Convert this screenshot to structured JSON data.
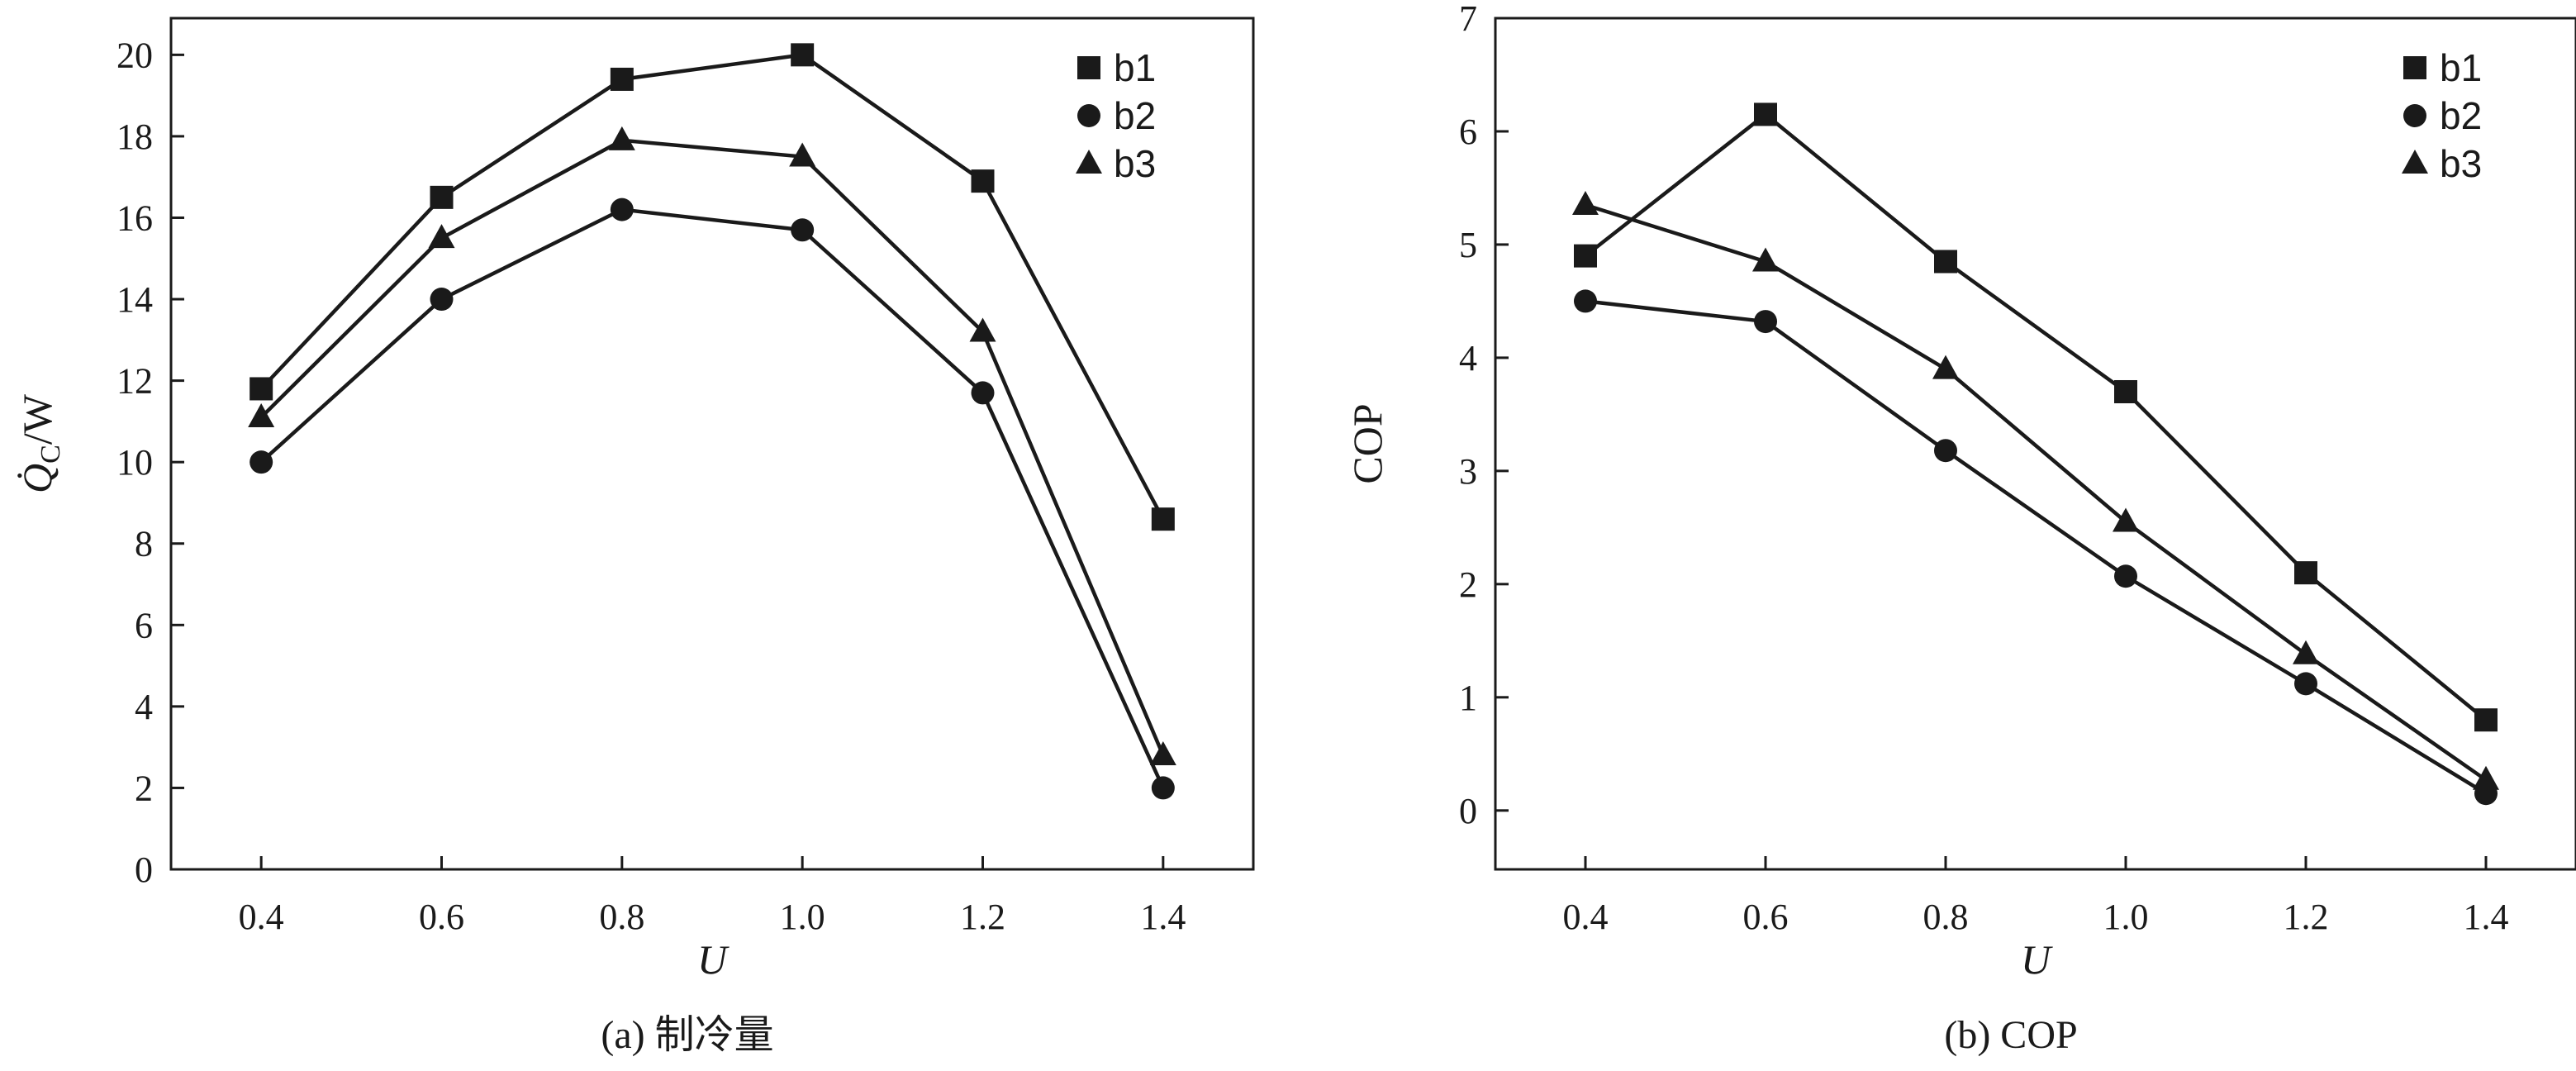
{
  "chart_data": [
    {
      "type": "line",
      "title": "",
      "caption": "(a) 制冷量",
      "xlabel": "U",
      "ylabel": "Q̇C/W",
      "ylabel_parts": {
        "symbol": "Q̇",
        "subscript": "C",
        "unit": "/W"
      },
      "xlim": [
        0.3,
        1.5
      ],
      "ylim": [
        0,
        20.9
      ],
      "x_ticks": [
        0.4,
        0.6,
        0.8,
        1.0,
        1.2,
        1.4
      ],
      "x_tick_labels": [
        "0.4",
        "0.6",
        "0.8",
        "1.0",
        "1.2",
        "1.4"
      ],
      "y_ticks": [
        0,
        2,
        4,
        6,
        8,
        10,
        12,
        14,
        16,
        18,
        20
      ],
      "y_tick_labels": [
        "0",
        "2",
        "4",
        "6",
        "8",
        "10",
        "12",
        "14",
        "16",
        "18",
        "20"
      ],
      "legend_position": "top-right",
      "grid": false,
      "series": [
        {
          "name": "b1",
          "marker": "square",
          "x": [
            0.4,
            0.6,
            0.8,
            1.0,
            1.2,
            1.4
          ],
          "values": [
            11.8,
            16.5,
            19.4,
            20.0,
            16.9,
            8.6
          ]
        },
        {
          "name": "b2",
          "marker": "circle",
          "x": [
            0.4,
            0.6,
            0.8,
            1.0,
            1.2,
            1.4
          ],
          "values": [
            10.0,
            14.0,
            16.2,
            15.7,
            11.7,
            2.0
          ]
        },
        {
          "name": "b3",
          "marker": "triangle",
          "x": [
            0.4,
            0.6,
            0.8,
            1.0,
            1.2,
            1.4
          ],
          "values": [
            11.1,
            15.5,
            17.9,
            17.5,
            13.2,
            2.8
          ]
        }
      ]
    },
    {
      "type": "line",
      "title": "",
      "caption": "(b) COP",
      "xlabel": "U",
      "ylabel": "COP",
      "xlim": [
        0.3,
        1.5
      ],
      "ylim": [
        -0.52,
        7.0
      ],
      "x_ticks": [
        0.4,
        0.6,
        0.8,
        1.0,
        1.2,
        1.4
      ],
      "x_tick_labels": [
        "0.4",
        "0.6",
        "0.8",
        "1.0",
        "1.2",
        "1.4"
      ],
      "y_ticks": [
        0,
        1,
        2,
        3,
        4,
        5,
        6,
        7
      ],
      "y_tick_labels": [
        "0",
        "1",
        "2",
        "3",
        "4",
        "5",
        "6",
        "7"
      ],
      "legend_position": "top-right",
      "grid": false,
      "series": [
        {
          "name": "b1",
          "marker": "square",
          "x": [
            0.4,
            0.6,
            0.8,
            1.0,
            1.2,
            1.4
          ],
          "values": [
            4.9,
            6.15,
            4.85,
            3.7,
            2.1,
            0.8
          ]
        },
        {
          "name": "b2",
          "marker": "circle",
          "x": [
            0.4,
            0.6,
            0.8,
            1.0,
            1.2,
            1.4
          ],
          "values": [
            4.5,
            4.32,
            3.18,
            2.07,
            1.12,
            0.15
          ]
        },
        {
          "name": "b3",
          "marker": "triangle",
          "x": [
            0.4,
            0.6,
            0.8,
            1.0,
            1.2,
            1.4
          ],
          "values": [
            5.35,
            4.85,
            3.9,
            2.55,
            1.38,
            0.27
          ]
        }
      ]
    }
  ]
}
